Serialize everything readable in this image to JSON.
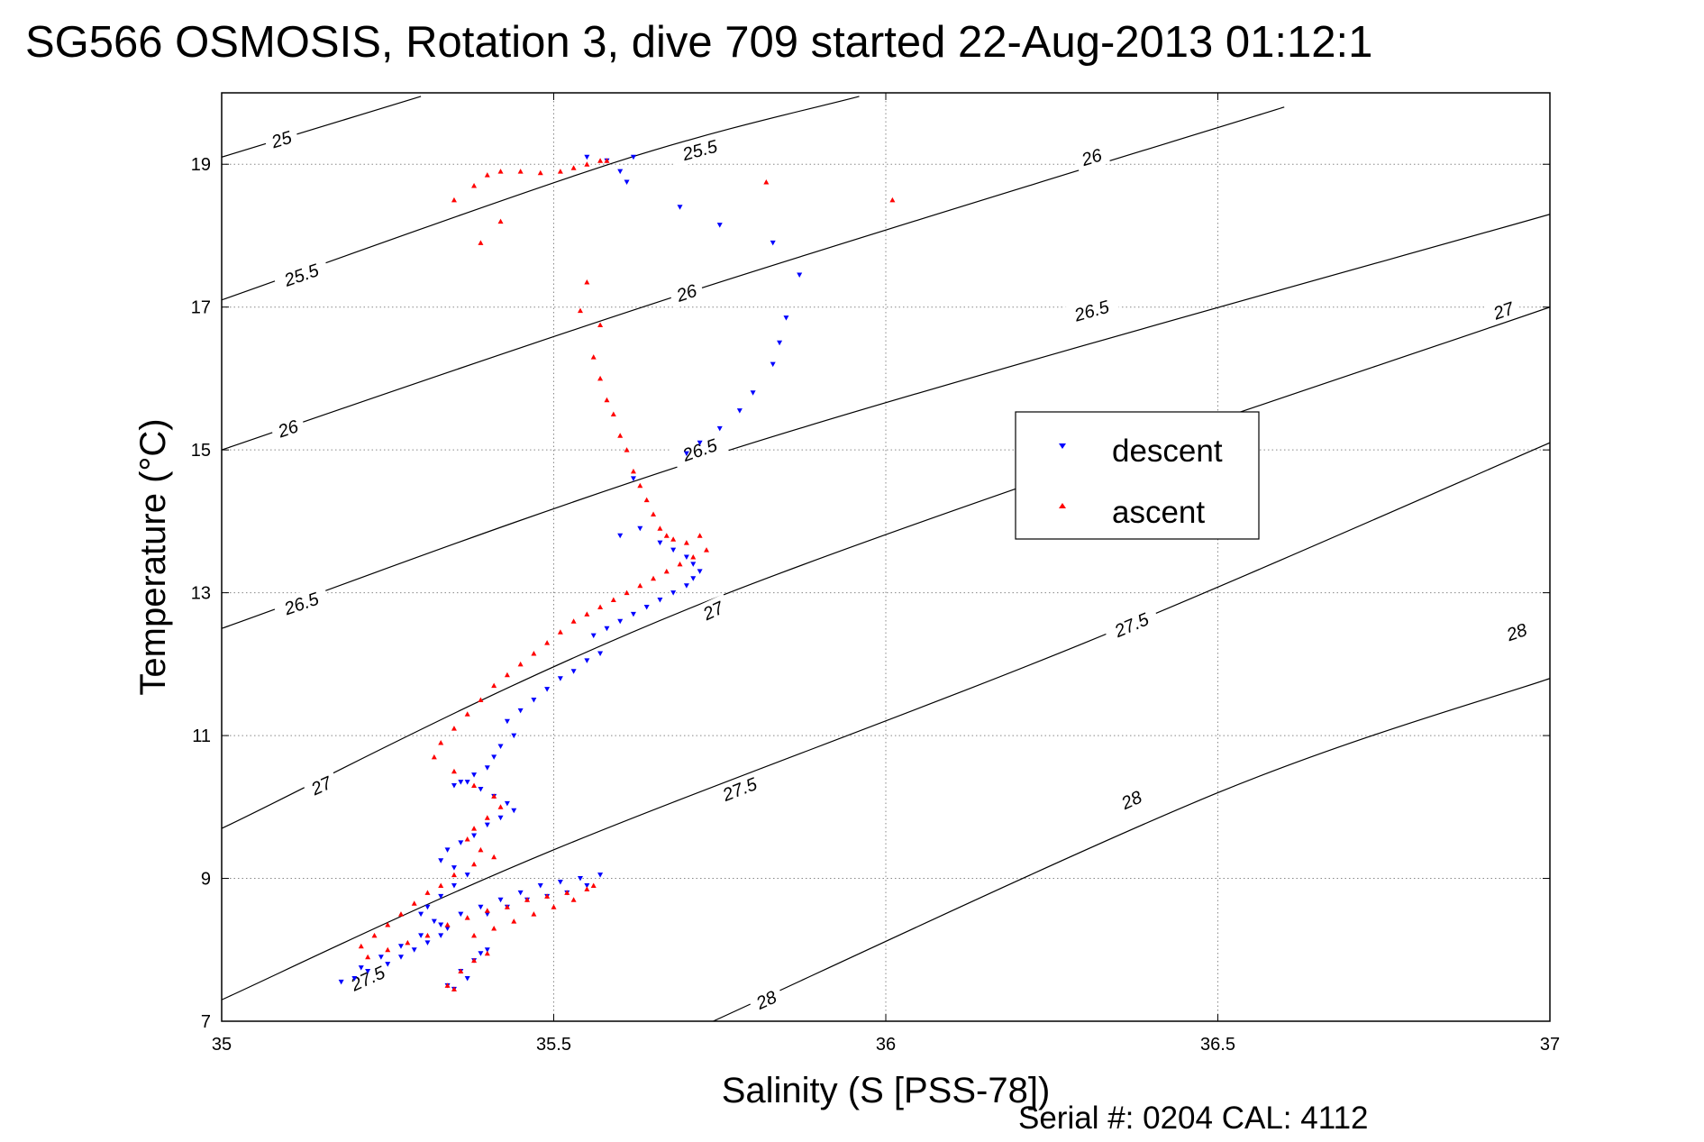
{
  "chart_data": {
    "type": "scatter",
    "title": "SG566 OSMOSIS, Rotation 3, dive 709 started 22-Aug-2013 01:12:1",
    "xlabel": "Salinity (S [PSS-78])",
    "ylabel": "Temperature (°C)",
    "footer": "Serial #: 0204  CAL: 4112",
    "xlim": [
      35,
      37
    ],
    "ylim": [
      7,
      20
    ],
    "x_ticks": [
      35,
      35.5,
      36,
      36.5,
      37
    ],
    "x_tick_labels": [
      "35",
      "35.5",
      "36",
      "36.5",
      "37"
    ],
    "y_ticks": [
      7,
      9,
      11,
      13,
      15,
      17,
      19
    ],
    "y_tick_labels": [
      "7",
      "9",
      "11",
      "13",
      "15",
      "17",
      "19"
    ],
    "grid": true,
    "legend_position": "center-right",
    "isopycnals": {
      "color": "#000000",
      "lines": [
        {
          "sigma": 25.0,
          "points": [
            [
              35.0,
              19.1
            ],
            [
              35.3,
              19.95
            ]
          ],
          "labels": [
            {
              "text": "25",
              "at": [
                35.09,
                19.35
              ]
            }
          ]
        },
        {
          "sigma": 25.5,
          "points": [
            [
              35.0,
              17.1
            ],
            [
              35.6,
              19.05
            ],
            [
              35.96,
              19.95
            ]
          ],
          "labels": [
            {
              "text": "25.5",
              "at": [
                35.12,
                17.45
              ]
            },
            {
              "text": "25.5",
              "at": [
                35.72,
                19.2
              ]
            }
          ]
        },
        {
          "sigma": 26.0,
          "points": [
            [
              35.0,
              15.0
            ],
            [
              35.7,
              17.2
            ],
            [
              36.6,
              19.8
            ]
          ],
          "labels": [
            {
              "text": "26",
              "at": [
                35.1,
                15.3
              ]
            },
            {
              "text": "26",
              "at": [
                35.7,
                17.2
              ]
            },
            {
              "text": "26",
              "at": [
                36.31,
                19.1
              ]
            }
          ]
        },
        {
          "sigma": 26.5,
          "points": [
            [
              35.0,
              12.5
            ],
            [
              35.8,
              15.1
            ],
            [
              37.0,
              18.3
            ]
          ],
          "labels": [
            {
              "text": "26.5",
              "at": [
                35.12,
                12.85
              ]
            },
            {
              "text": "26.5",
              "at": [
                35.72,
                15.0
              ]
            },
            {
              "text": "26.5",
              "at": [
                36.31,
                16.95
              ]
            }
          ]
        },
        {
          "sigma": 27.0,
          "points": [
            [
              35.0,
              9.7
            ],
            [
              35.75,
              12.95
            ],
            [
              37.0,
              17.0
            ]
          ],
          "labels": [
            {
              "text": "27",
              "at": [
                35.15,
                10.3
              ]
            },
            {
              "text": "27",
              "at": [
                35.74,
                12.75
              ]
            },
            {
              "text": "27",
              "at": [
                36.93,
                16.95
              ]
            }
          ]
        },
        {
          "sigma": 27.5,
          "points": [
            [
              35.0,
              7.3
            ],
            [
              35.5,
              9.4
            ],
            [
              36.3,
              12.3
            ],
            [
              37.0,
              15.1
            ]
          ],
          "labels": [
            {
              "text": "27.5",
              "at": [
                35.22,
                7.6
              ]
            },
            {
              "text": "27.5",
              "at": [
                35.78,
                10.25
              ]
            },
            {
              "text": "27.5",
              "at": [
                36.37,
                12.55
              ]
            }
          ]
        },
        {
          "sigma": 28.0,
          "points": [
            [
              35.74,
              7.0
            ],
            [
              36.5,
              10.2
            ],
            [
              37.0,
              11.8
            ]
          ],
          "labels": [
            {
              "text": "28",
              "at": [
                35.82,
                7.3
              ]
            },
            {
              "text": "28",
              "at": [
                36.37,
                10.1
              ]
            },
            {
              "text": "28",
              "at": [
                36.95,
                12.45
              ]
            }
          ]
        }
      ]
    },
    "series": [
      {
        "name": "descent",
        "color": "#0000ff",
        "marker": "triangle-down",
        "x": [
          35.55,
          35.58,
          35.62,
          35.6,
          35.61,
          35.69,
          35.75,
          35.83,
          35.87,
          35.85,
          35.84,
          35.83,
          35.8,
          35.78,
          35.75,
          35.72,
          35.7,
          35.62,
          35.6,
          35.63,
          35.66,
          35.68,
          35.7,
          35.71,
          35.72,
          35.71,
          35.7,
          35.68,
          35.66,
          35.64,
          35.62,
          35.6,
          35.58,
          35.56,
          35.57,
          35.55,
          35.53,
          35.51,
          35.49,
          35.47,
          35.45,
          35.43,
          35.44,
          35.42,
          35.41,
          35.4,
          35.38,
          35.36,
          35.35,
          35.37,
          35.39,
          35.41,
          35.43,
          35.44,
          35.42,
          35.4,
          35.38,
          35.36,
          35.34,
          35.33,
          35.35,
          35.37,
          35.35,
          35.33,
          35.31,
          35.3,
          35.32,
          35.34,
          35.33,
          35.31,
          35.29,
          35.27,
          35.25,
          35.22,
          35.2,
          35.18,
          35.21,
          35.24,
          35.27,
          35.3,
          35.33,
          35.36,
          35.39,
          35.42,
          35.45,
          35.48,
          35.51,
          35.54,
          35.57,
          35.55,
          35.52,
          35.49,
          35.46,
          35.43,
          35.4,
          35.37,
          35.35,
          35.34,
          35.36,
          35.38,
          35.39,
          35.4
        ],
        "y": [
          19.1,
          19.05,
          19.1,
          18.9,
          18.75,
          18.4,
          18.15,
          17.9,
          17.45,
          16.85,
          16.5,
          16.2,
          15.8,
          15.55,
          15.3,
          15.1,
          14.95,
          14.6,
          13.8,
          13.9,
          13.7,
          13.6,
          13.5,
          13.4,
          13.3,
          13.2,
          13.1,
          13.0,
          12.9,
          12.8,
          12.7,
          12.6,
          12.5,
          12.4,
          12.15,
          12.05,
          11.9,
          11.8,
          11.65,
          11.5,
          11.35,
          11.2,
          11.0,
          10.85,
          10.7,
          10.55,
          10.45,
          10.35,
          10.3,
          10.35,
          10.25,
          10.15,
          10.05,
          9.95,
          9.85,
          9.75,
          9.6,
          9.5,
          9.4,
          9.25,
          9.15,
          9.05,
          8.9,
          8.75,
          8.6,
          8.5,
          8.4,
          8.3,
          8.2,
          8.1,
          8.0,
          7.9,
          7.8,
          7.7,
          7.6,
          7.55,
          7.75,
          7.9,
          8.05,
          8.2,
          8.35,
          8.5,
          8.6,
          8.7,
          8.8,
          8.9,
          8.95,
          9.0,
          9.05,
          8.9,
          8.8,
          8.75,
          8.7,
          8.6,
          8.5,
          7.6,
          7.45,
          7.5,
          7.7,
          7.85,
          7.95,
          8.0
        ]
      },
      {
        "name": "ascent",
        "color": "#ff0000",
        "marker": "triangle-up",
        "x": [
          35.35,
          35.38,
          35.4,
          35.42,
          35.45,
          35.48,
          35.51,
          35.53,
          35.55,
          35.57,
          35.58,
          35.82,
          36.01,
          35.42,
          35.39,
          35.55,
          35.54,
          35.57,
          35.56,
          35.57,
          35.58,
          35.59,
          35.6,
          35.61,
          35.62,
          35.63,
          35.64,
          35.65,
          35.66,
          35.67,
          35.68,
          35.7,
          35.72,
          35.73,
          35.71,
          35.69,
          35.67,
          35.65,
          35.63,
          35.61,
          35.59,
          35.57,
          35.55,
          35.53,
          35.51,
          35.49,
          35.47,
          35.45,
          35.43,
          35.41,
          35.39,
          35.37,
          35.35,
          35.33,
          35.32,
          35.35,
          35.38,
          35.41,
          35.42,
          35.4,
          35.38,
          35.37,
          35.39,
          35.41,
          35.38,
          35.35,
          35.33,
          35.31,
          35.29,
          35.27,
          35.25,
          35.23,
          35.21,
          35.22,
          35.25,
          35.28,
          35.31,
          35.34,
          35.37,
          35.4,
          35.43,
          35.46,
          35.49,
          35.52,
          35.55,
          35.56,
          35.53,
          35.5,
          35.47,
          35.44,
          35.41,
          35.38,
          35.35,
          35.34,
          35.36,
          35.38,
          35.4
        ],
        "y": [
          18.5,
          18.7,
          18.85,
          18.9,
          18.9,
          18.88,
          18.9,
          18.95,
          19.0,
          19.05,
          19.05,
          18.75,
          18.5,
          18.2,
          17.9,
          17.35,
          16.95,
          16.75,
          16.3,
          16.0,
          15.7,
          15.5,
          15.2,
          15.0,
          14.7,
          14.5,
          14.3,
          14.1,
          13.9,
          13.8,
          13.75,
          13.7,
          13.8,
          13.6,
          13.5,
          13.4,
          13.3,
          13.2,
          13.1,
          13.0,
          12.9,
          12.8,
          12.7,
          12.6,
          12.45,
          12.3,
          12.15,
          12.0,
          11.85,
          11.7,
          11.5,
          11.3,
          11.1,
          10.9,
          10.7,
          10.5,
          10.3,
          10.15,
          10.0,
          9.85,
          9.7,
          9.55,
          9.4,
          9.3,
          9.2,
          9.05,
          8.9,
          8.8,
          8.65,
          8.5,
          8.35,
          8.2,
          8.05,
          7.9,
          8.0,
          8.1,
          8.2,
          8.35,
          8.45,
          8.55,
          8.6,
          8.7,
          8.75,
          8.8,
          8.85,
          8.9,
          8.7,
          8.6,
          8.5,
          8.4,
          8.3,
          8.2,
          7.45,
          7.5,
          7.7,
          7.85,
          7.95
        ]
      }
    ]
  }
}
